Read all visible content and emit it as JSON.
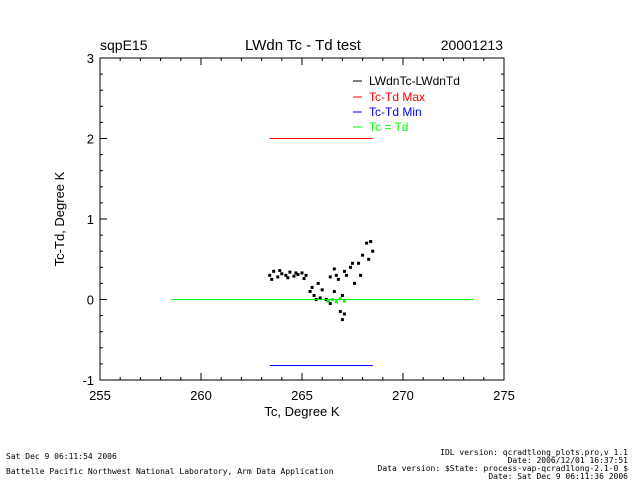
{
  "header": {
    "site": "sqpE15",
    "title": "LWdn Tc - Td test",
    "date": "20001213"
  },
  "footer": {
    "left_line1": "Sat Dec  9 06:11:54 2006",
    "left_line2": "Battelle Pacific Northwest National Laboratory, Arm Data Application",
    "right_line1": "IDL version: qcradtlong_plots.pro,v 1.1",
    "right_line2": "Date: 2006/12/01 16:37:51",
    "right_line3": "Data version: $State: process-vap-qcrad1long-2.1-0 $",
    "right_line4": "Date: Sat Dec  9 06:11:36 2006"
  },
  "chart_data": {
    "type": "scatter",
    "xlabel": "Tc, Degree K",
    "ylabel": "Tc-Td, Degree K",
    "xlim": [
      255,
      275
    ],
    "ylim": [
      -1,
      3
    ],
    "xticks": [
      255,
      260,
      265,
      270,
      275
    ],
    "yticks": [
      -1,
      0,
      1,
      2,
      3
    ],
    "grid": false,
    "legend_position": "top-right",
    "legend": [
      {
        "label": "LWdnTc-LWdnTd",
        "color": "#000000"
      },
      {
        "label": "Tc-Td Max",
        "color": "#ff0000"
      },
      {
        "label": "Tc-Td Min",
        "color": "#0000ff"
      },
      {
        "label": "Tc = Td",
        "color": "#00ff00"
      }
    ],
    "series": [
      {
        "name": "LWdnTc-LWdnTd",
        "color": "#000000",
        "kind": "points",
        "x": [
          263.4,
          263.6,
          263.8,
          264.0,
          264.2,
          264.4,
          264.6,
          264.8,
          265.0,
          265.2,
          265.4,
          265.6,
          265.8,
          266.0,
          266.2,
          266.4,
          266.6,
          266.8,
          267.0,
          267.2,
          267.4,
          267.6,
          267.8,
          268.0,
          268.2,
          268.4,
          268.5,
          263.5,
          263.9,
          264.3,
          264.7,
          265.1,
          265.5,
          265.9,
          266.3,
          266.7,
          267.1,
          267.5,
          267.9,
          268.3,
          266.9,
          267.0,
          267.1,
          266.6,
          266.4,
          265.7
        ],
        "y": [
          0.3,
          0.35,
          0.28,
          0.32,
          0.3,
          0.34,
          0.29,
          0.31,
          0.33,
          0.3,
          0.1,
          0.05,
          0.2,
          0.12,
          0.0,
          -0.05,
          0.1,
          0.25,
          0.05,
          0.3,
          0.4,
          0.2,
          0.45,
          0.55,
          0.7,
          0.72,
          0.6,
          0.25,
          0.36,
          0.27,
          0.33,
          0.26,
          0.15,
          0.02,
          -0.02,
          0.3,
          0.35,
          0.45,
          0.3,
          0.5,
          -0.15,
          -0.25,
          -0.18,
          0.38,
          0.28,
          0.0
        ]
      },
      {
        "name": "Tc = Td",
        "color": "#00ff00",
        "kind": "points",
        "x": [
          266.3,
          266.5,
          266.7,
          266.9,
          267.1
        ],
        "y": [
          -0.02,
          0.0,
          -0.03,
          0.01,
          -0.02
        ]
      },
      {
        "name": "Tc-Td Max",
        "color": "#ff0000",
        "kind": "segment",
        "x": [
          263.4,
          268.5
        ],
        "y": [
          2,
          2
        ]
      },
      {
        "name": "Tc-Td Min",
        "color": "#0000ff",
        "kind": "segment",
        "x": [
          263.4,
          268.5
        ],
        "y": [
          -0.82,
          -0.82
        ]
      },
      {
        "name": "Tc = Td",
        "color": "#00ff00",
        "kind": "segment",
        "x": [
          258.5,
          273.5
        ],
        "y": [
          0,
          0
        ]
      }
    ]
  }
}
